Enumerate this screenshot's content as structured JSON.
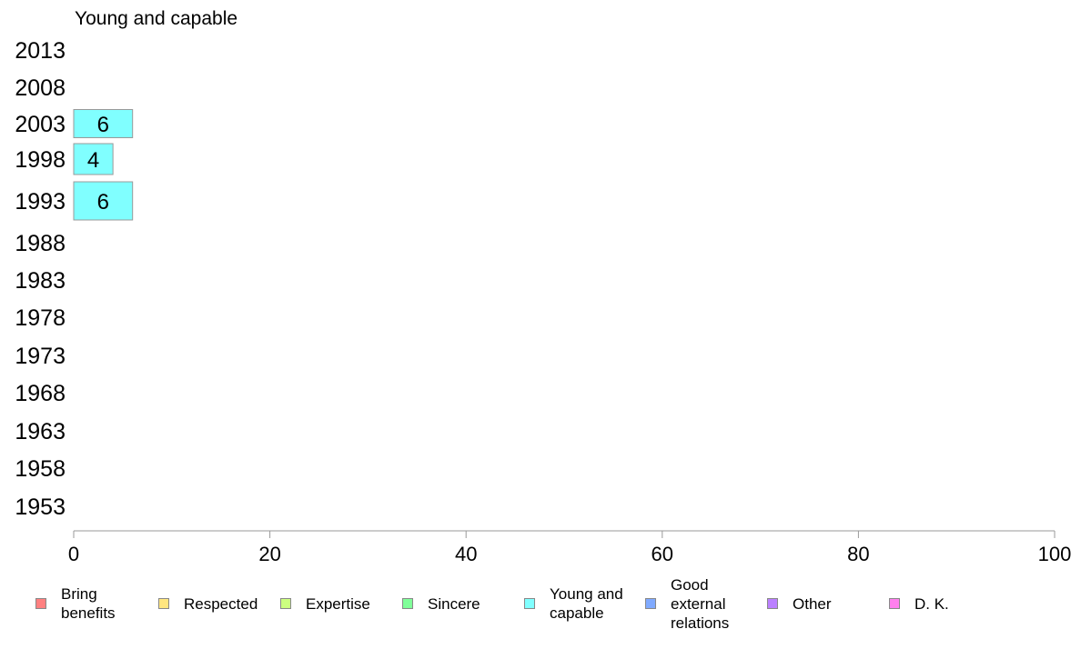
{
  "chart_data": {
    "type": "bar",
    "orientation": "horizontal",
    "title": "Young and capable",
    "categories": [
      "2013",
      "2008",
      "2003",
      "1998",
      "1993",
      "1988",
      "1983",
      "1978",
      "1973",
      "1968",
      "1963",
      "1958",
      "1953"
    ],
    "series": [
      {
        "name": "Young and capable",
        "color": "#80ffff",
        "values": [
          null,
          null,
          6,
          4,
          6,
          null,
          null,
          null,
          null,
          null,
          null,
          null,
          null
        ],
        "labels": [
          "",
          "",
          "6",
          "4",
          "6",
          "",
          "",
          "",
          "",
          "",
          "",
          "",
          ""
        ]
      }
    ],
    "xlim": [
      0,
      100
    ],
    "xticks": [
      "0",
      "20",
      "40",
      "60",
      "80",
      "100"
    ],
    "grid": false
  },
  "legend": {
    "items": [
      {
        "label": "Bring benefits",
        "color": "#ff8080"
      },
      {
        "label": "Respected",
        "color": "#ffe680"
      },
      {
        "label": "Expertise",
        "color": "#ccff80"
      },
      {
        "label": "Sincere",
        "color": "#80ff99"
      },
      {
        "label": "Young and capable",
        "color": "#80ffff"
      },
      {
        "label": "Good external relations",
        "color": "#80aaff"
      },
      {
        "label": "Other",
        "color": "#bb80ff"
      },
      {
        "label": "D. K.",
        "color": "#ff80ee"
      }
    ]
  }
}
